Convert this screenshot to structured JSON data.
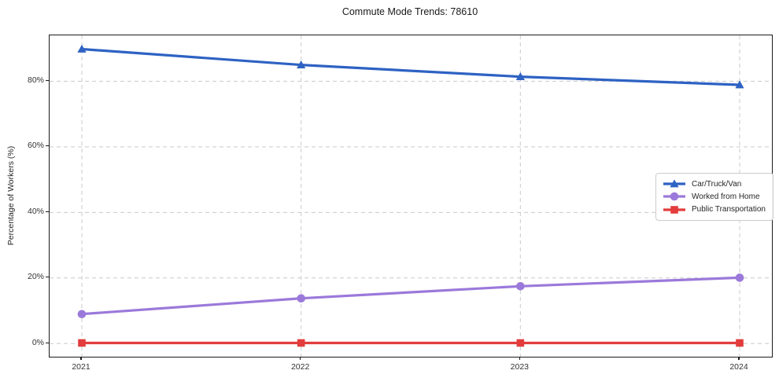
{
  "title": "Commute Mode Trends: 78610",
  "colors": {
    "grid": "#c9c9c9",
    "spine": "#1b1b1b",
    "tick_text": "#333333",
    "title_text": "#1a1a1a",
    "car": "#2e62c3",
    "home": "#9b79da",
    "transit": "#e23c3c"
  },
  "chart_data": {
    "type": "line",
    "title": "Commute Mode Trends: 78610",
    "xlabel": "",
    "ylabel": "Percentage of Workers (%)",
    "x": [
      2021,
      2022,
      2023,
      2024
    ],
    "x_labels": [
      "2021",
      "2022",
      "2023",
      "2024"
    ],
    "series": [
      {
        "name": "Car/Truck/Van",
        "marker": "triangle",
        "color": "#2e62c3",
        "values": [
          89.8,
          85.0,
          81.4,
          78.9
        ]
      },
      {
        "name": "Worked from Home",
        "marker": "circle",
        "color": "#9b79da",
        "values": [
          9.0,
          13.8,
          17.5,
          20.1
        ]
      },
      {
        "name": "Public Transportation",
        "marker": "square",
        "color": "#e23c3c",
        "values": [
          0.2,
          0.2,
          0.2,
          0.2
        ]
      }
    ],
    "yticks": [
      0,
      20,
      40,
      60,
      80
    ],
    "ytick_labels": [
      "0%",
      "20%",
      "40%",
      "60%",
      "80%"
    ],
    "ylim": [
      -4,
      94
    ],
    "grid": true,
    "grid_style": "dashed",
    "legend_position": "center-right"
  }
}
